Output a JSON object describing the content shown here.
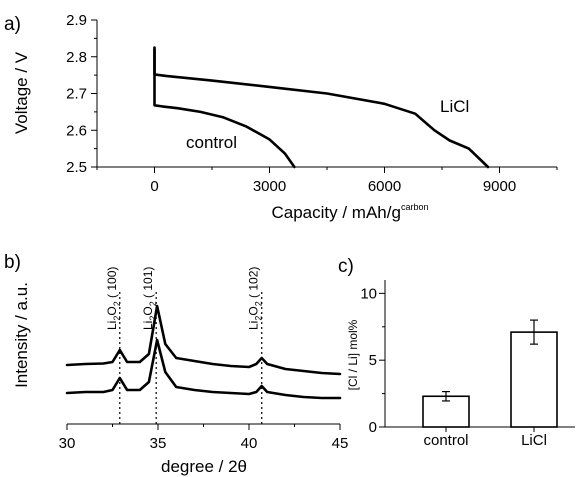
{
  "chart_data": [
    {
      "panel": "a)",
      "type": "line",
      "xlabel": "Capacity / mAh/g",
      "xlabel_sup": "carbon",
      "ylabel": "Voltage / V",
      "xlim": [
        -1500,
        10500
      ],
      "ylim": [
        2.5,
        2.9
      ],
      "xticks": [
        0,
        3000,
        6000,
        9000
      ],
      "xtick_labels": [
        "0",
        "3000",
        "6000",
        "9000"
      ],
      "yticks": [
        2.5,
        2.6,
        2.7,
        2.8,
        2.9
      ],
      "ytick_labels": [
        "2.5",
        "2.6",
        "2.7",
        "2.8",
        "2.9"
      ],
      "series": [
        {
          "name": "LiCl",
          "x": [
            0,
            0,
            0,
            300,
            1500,
            3000,
            4500,
            6000,
            6800,
            7300,
            7700,
            8200,
            8700
          ],
          "y": [
            2.825,
            2.78,
            2.752,
            2.748,
            2.735,
            2.718,
            2.7,
            2.672,
            2.645,
            2.6,
            2.572,
            2.55,
            2.5
          ]
        },
        {
          "name": "control",
          "x": [
            0,
            0,
            0,
            200,
            600,
            1200,
            1800,
            2400,
            3000,
            3400,
            3650
          ],
          "y": [
            2.82,
            2.7,
            2.668,
            2.665,
            2.66,
            2.65,
            2.635,
            2.61,
            2.575,
            2.537,
            2.5
          ]
        }
      ]
    },
    {
      "panel": "b)",
      "type": "line",
      "xlabel": "degree / 2θ",
      "ylabel": "Intensity / a.u.",
      "xlim": [
        30,
        45
      ],
      "xticks": [
        30,
        35,
        40,
        45
      ],
      "xtick_labels": [
        "30",
        "35",
        "40",
        "45"
      ],
      "reference_lines": [
        {
          "x": 32.9,
          "label": "Li",
          "sub1": "2",
          "mid": "O",
          "sub2": "2",
          "hkl": "( 100)"
        },
        {
          "x": 34.9,
          "label": "Li",
          "sub1": "2",
          "mid": "O",
          "sub2": "2",
          "hkl": "( 101)"
        },
        {
          "x": 40.7,
          "label": "Li",
          "sub1": "2",
          "mid": "O",
          "sub2": "2",
          "hkl": "( 102)"
        }
      ],
      "series": [
        {
          "name": "LiCl",
          "x": [
            30,
            31,
            32,
            32.5,
            32.9,
            33.3,
            34,
            34.5,
            34.95,
            35.4,
            36,
            37,
            38,
            39,
            40,
            40.4,
            40.7,
            41,
            42,
            43,
            44,
            45
          ],
          "y": [
            0.79,
            0.8,
            0.805,
            0.82,
            0.94,
            0.82,
            0.82,
            0.9,
            1.38,
            1.0,
            0.86,
            0.83,
            0.8,
            0.78,
            0.77,
            0.8,
            0.86,
            0.8,
            0.75,
            0.73,
            0.71,
            0.7
          ]
        },
        {
          "name": "control",
          "x": [
            30,
            31,
            32,
            32.5,
            32.9,
            33.3,
            34,
            34.5,
            34.95,
            35.4,
            36,
            37,
            38,
            39,
            40,
            40.4,
            40.7,
            41,
            42,
            43,
            44,
            45
          ],
          "y": [
            0.09,
            0.1,
            0.1,
            0.12,
            0.24,
            0.12,
            0.12,
            0.2,
            0.62,
            0.3,
            0.15,
            0.12,
            0.1,
            0.09,
            0.08,
            0.1,
            0.16,
            0.1,
            0.07,
            0.05,
            0.04,
            0.04
          ]
        }
      ]
    },
    {
      "panel": "c)",
      "type": "bar",
      "ylabel": "[Cl / Li] mol%",
      "categories": [
        "control",
        "LiCl"
      ],
      "values": [
        2.3,
        7.1
      ],
      "errors": [
        0.35,
        0.9
      ],
      "ylim": [
        0,
        11
      ],
      "yticks": [
        0,
        5,
        10
      ],
      "ytick_labels": [
        "0",
        "5",
        "10"
      ]
    }
  ]
}
